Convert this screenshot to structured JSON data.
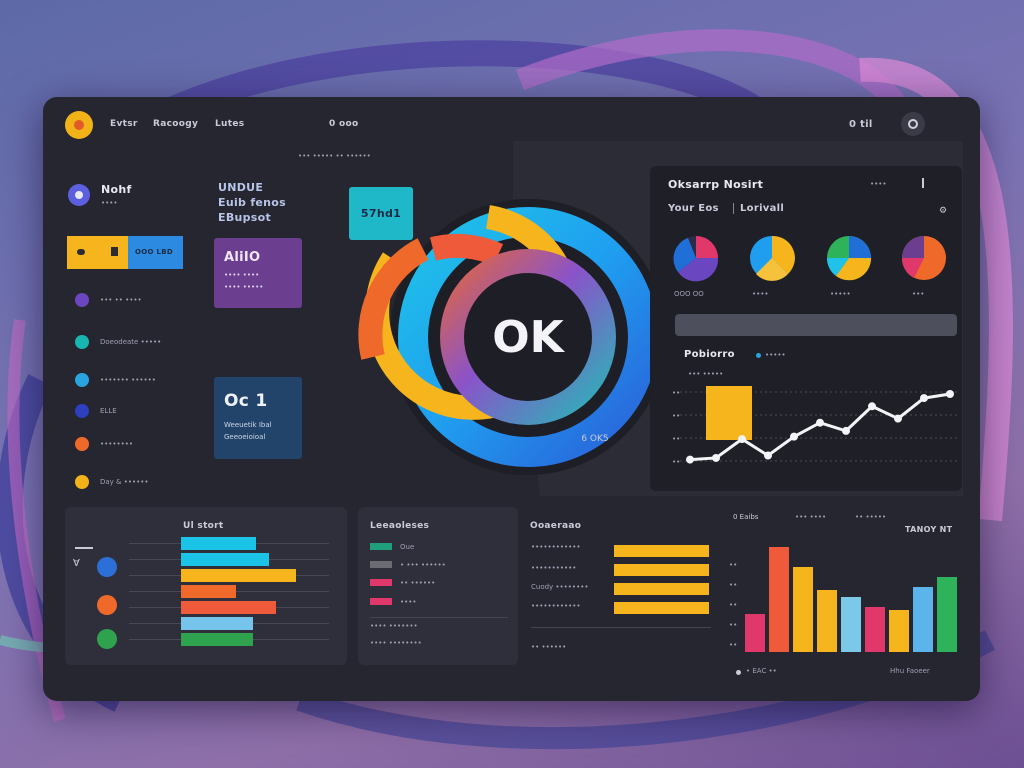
{
  "header": {
    "nav": [
      "Evtsr",
      "Racoogy",
      "Lutes"
    ],
    "status": "0 ooo",
    "right_label": "0 til",
    "sub_left": "••• ••••• •• ••••••",
    "sub_right": "•••• •••••"
  },
  "sidebar": {
    "profile_name": "Nohf",
    "profile_sub": "••••",
    "highlight_label": "OOO LBD",
    "items": [
      {
        "label": "••• •• ••••",
        "color": "#6b46c1"
      },
      {
        "label": "Doeodeate •••••",
        "color": "#17b6b0"
      },
      {
        "label": "••••••• ••••••",
        "color": "#29a4e0"
      },
      {
        "label": "ELLE",
        "color": "#2d3fbf"
      },
      {
        "label": "••••••••",
        "color": "#ef6a2a"
      },
      {
        "label": "Day & ••••••",
        "color": "#f2b318"
      }
    ]
  },
  "center": {
    "text_block": [
      "UNDUE",
      "Euib fenos",
      "EBupsot"
    ],
    "teal_badge": "57hd1",
    "purple_card": {
      "title": "AliIO",
      "line1": "•••• ••••",
      "line2": "•••• •••••"
    },
    "blue_card": {
      "title": "Oc 1",
      "line1": "Weeuetik Ibal",
      "line2": "Geeoeioioal"
    },
    "big_label": "OK",
    "ring_caption": "6 OK5"
  },
  "right_panel": {
    "title": "Oksarrp Nosirt",
    "tabs": [
      "Your Eos",
      "Lorivall"
    ],
    "menu": "••••",
    "pie_labels": [
      "OOO OO",
      "••••",
      "•••••",
      "•••"
    ],
    "chart_title": "Pobiorro",
    "chart_legend": "•••••",
    "chart_sub": "••• •••••",
    "y_ticks": [
      "••",
      "••",
      "••",
      "••",
      "••",
      "••"
    ],
    "line_values": [
      20,
      22,
      45,
      25,
      48,
      65,
      55,
      85,
      70,
      95,
      100
    ]
  },
  "bottom_left": {
    "title": "Ul stort",
    "bars": [
      {
        "value": 75,
        "color": "#1bc4e6"
      },
      {
        "value": 88,
        "color": "#1bc4e6"
      },
      {
        "value": 115,
        "color": "#f6b51c"
      },
      {
        "value": 55,
        "color": "#ef6a2a"
      },
      {
        "value": 95,
        "color": "#ef5a3a"
      },
      {
        "value": 72,
        "color": "#76c4ec"
      },
      {
        "value": 72,
        "color": "#2ea24d"
      }
    ],
    "icons": [
      {
        "color": "#2c6fd6"
      },
      {
        "color": "#ef6a2a"
      },
      {
        "color": "#2ea24d"
      }
    ]
  },
  "bottom_mid": {
    "title": "Leeaoleses",
    "items": [
      {
        "label": "Oue",
        "color": "#1fa07a"
      },
      {
        "label": "• ••• ••••••",
        "color": "#6b6b72"
      },
      {
        "label": "•• ••••••",
        "color": "#e0386a"
      },
      {
        "label": "••••",
        "color": "#e0386a"
      },
      {
        "label": "•••• •••••••",
        "color": "#6b6b72"
      },
      {
        "label": "•••• ••••••••",
        "color": "#6b6b72"
      }
    ]
  },
  "bottom_right": {
    "title": "Ooaeraao",
    "legend": [
      "0 Eaibs",
      "••• ••••",
      "•• •••••"
    ],
    "corner": "TANOY NT",
    "row_labels": [
      "••••••••••••",
      "•••••••••••",
      "Cuody ••••••••",
      "••••••••••••",
      "•• ••••••"
    ],
    "hbars": [
      95,
      95,
      95,
      95
    ],
    "vbars": [
      {
        "value": 38,
        "color": "#e0386a"
      },
      {
        "value": 105,
        "color": "#ef5a3a"
      },
      {
        "value": 85,
        "color": "#f6b51c"
      },
      {
        "value": 62,
        "color": "#f6b51c"
      },
      {
        "value": 55,
        "color": "#7cc8e8"
      },
      {
        "value": 45,
        "color": "#e0386a"
      },
      {
        "value": 42,
        "color": "#f6b51c"
      },
      {
        "value": 65,
        "color": "#5bb4ea"
      },
      {
        "value": 75,
        "color": "#2fb35a"
      }
    ],
    "footer_left": "• EAC ••",
    "footer_right": "Hhu Faoeer"
  },
  "colors": {
    "orange": "#ef6a2a",
    "yellow": "#f6b51c",
    "cyan": "#1bc4e6",
    "blue": "#2c6fd6",
    "purple": "#6b3e8f"
  }
}
